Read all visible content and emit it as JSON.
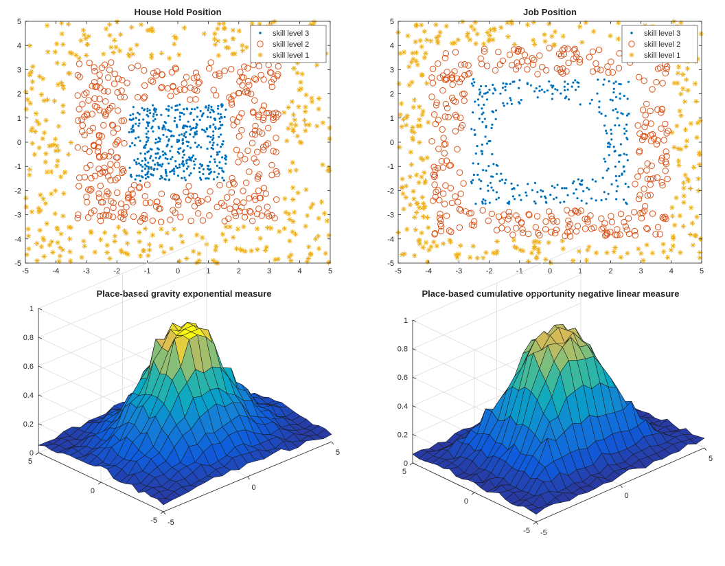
{
  "figure": {
    "type": "matlab-figure-2x2"
  },
  "chart_data": [
    {
      "type": "scatter",
      "title": "House Hold Position",
      "xlim": [
        -5,
        5
      ],
      "ylim": [
        -5,
        5
      ],
      "xticks": [
        "-5",
        "-4",
        "-3",
        "-2",
        "-1",
        "0",
        "1",
        "2",
        "3",
        "4",
        "5"
      ],
      "yticks": [
        "-5",
        "-4",
        "-3",
        "-2",
        "-1",
        "0",
        "1",
        "2",
        "3",
        "4",
        "5"
      ],
      "grid": false,
      "legend_position": "top-right",
      "series": [
        {
          "name": "skill level 3",
          "marker": "dot",
          "color": "#0072BD",
          "region": "uniform in |x|<=1.6, |y|<=1.6",
          "count": 420
        },
        {
          "name": "skill level 2",
          "marker": "open-circle",
          "color": "#D95319",
          "region": "uniform in |x|<=3.3, |y|<=3.3 excluding |x|<=1.6 & |y|<=1.6",
          "count": 380
        },
        {
          "name": "skill level 1",
          "marker": "asterisk",
          "color": "#EDB120",
          "region": "uniform in |x|<=5, |y|<=5 excluding |x|<=3.3 & |y|<=3.3",
          "count": 360
        }
      ]
    },
    {
      "type": "scatter",
      "title": "Job Position",
      "xlim": [
        -5,
        5
      ],
      "ylim": [
        -5,
        5
      ],
      "xticks": [
        "-5",
        "-4",
        "-3",
        "-2",
        "-1",
        "0",
        "1",
        "2",
        "3",
        "4",
        "5"
      ],
      "yticks": [
        "-5",
        "-4",
        "-3",
        "-2",
        "-1",
        "0",
        "1",
        "2",
        "3",
        "4",
        "5"
      ],
      "grid": false,
      "legend_position": "top-right",
      "series": [
        {
          "name": "skill level 3",
          "marker": "dot",
          "color": "#0072BD",
          "region": "ring: |x|<=2.6, |y|<=2.6 excluding |x|<=1.6 & |y|<=1.6 (ellipse-like hole)",
          "count": 300
        },
        {
          "name": "skill level 2",
          "marker": "open-circle",
          "color": "#D95319",
          "region": "ring: |x|<=3.9, |y|<=3.9 excluding |x|<=2.7 & |y|<=2.7",
          "count": 340
        },
        {
          "name": "skill level 1",
          "marker": "asterisk",
          "color": "#EDB120",
          "region": "uniform in |x|<=5, |y|<=5 excluding |x|<=3.9 & |y|<=3.9",
          "count": 300
        }
      ]
    },
    {
      "type": "surface",
      "title": "Place-based gravity exponential measure",
      "zlim": [
        0,
        1
      ],
      "zticks": [
        "0",
        "0.2",
        "0.4",
        "0.6",
        "0.8",
        "1"
      ],
      "xticks": [
        "-5",
        "0",
        "5"
      ],
      "yticks": [
        "-5",
        "0",
        "5"
      ],
      "colormap": "parula",
      "grid_size": 21,
      "peak": 0.82,
      "shape": "radial gaussian-like peak centered at origin with noise",
      "seed": 7
    },
    {
      "type": "surface",
      "title": "Place-based cumulative opportunity negative linear measure",
      "zlim": [
        0,
        1
      ],
      "zticks": [
        "0",
        "0.2",
        "0.4",
        "0.6",
        "0.8",
        "1"
      ],
      "xticks": [
        "-5",
        "0",
        "5"
      ],
      "yticks": [
        "-5",
        "0",
        "5"
      ],
      "colormap": "parula",
      "grid_size": 21,
      "peak": 0.93,
      "shape": "flat-top plateau at center with stepped shoulders and noise",
      "seed": 13
    }
  ]
}
